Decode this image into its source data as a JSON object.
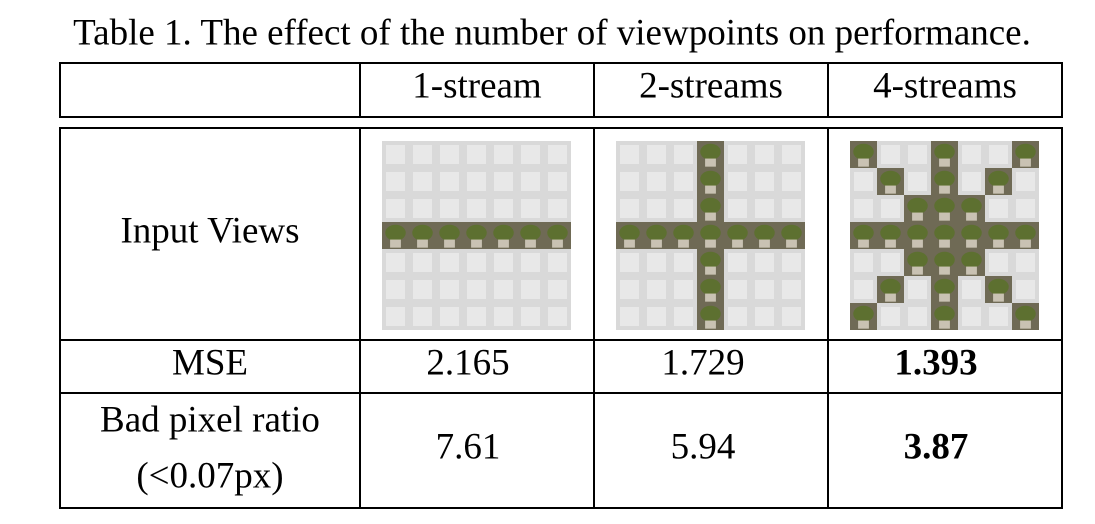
{
  "caption": "Table 1. The effect of the number of viewpoints on performance.",
  "table": {
    "header": [
      "1-stream",
      "2-streams",
      "4-streams"
    ],
    "rows": [
      {
        "label": [
          "Input Views"
        ]
      },
      {
        "label": [
          "MSE"
        ],
        "values": [
          "2.165",
          "1.729",
          "1.393"
        ]
      },
      {
        "label": [
          "Bad pixel ratio",
          "(<0.07px)"
        ],
        "values": [
          "7.61",
          "5.94",
          "3.87"
        ]
      }
    ]
  }
}
